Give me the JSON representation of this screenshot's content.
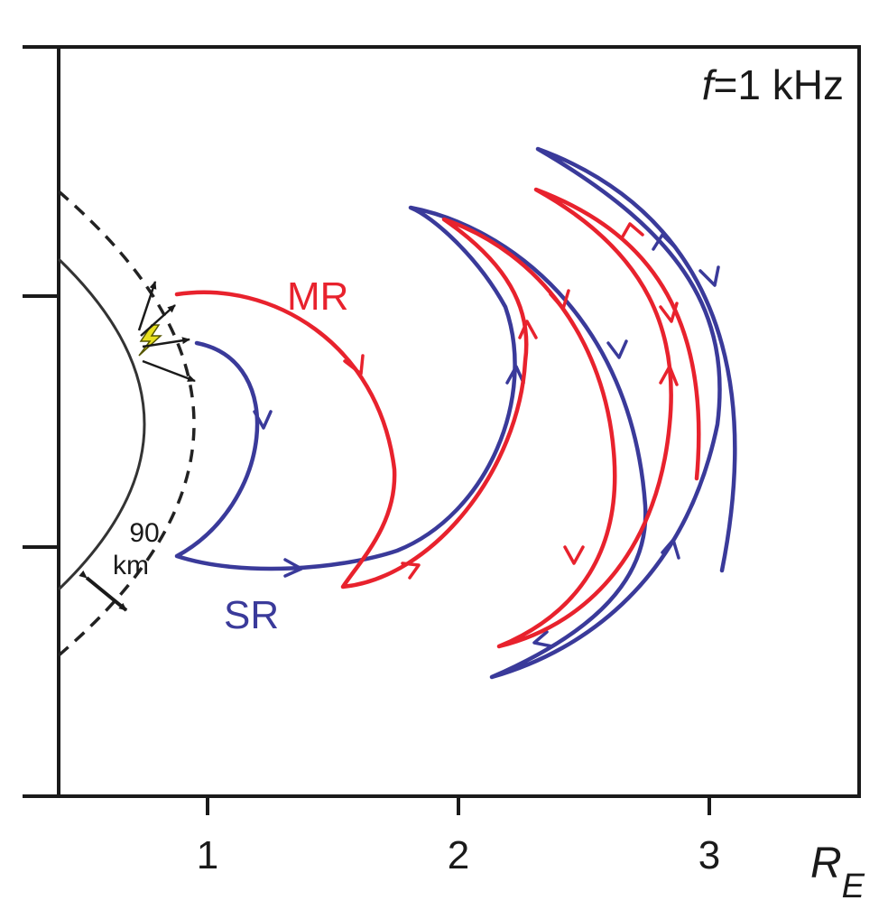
{
  "annotation": {
    "frequency_symbol": "f",
    "frequency_value": "=1 kHz",
    "altitude_value": "90",
    "altitude_unit": "km"
  },
  "labels": {
    "mr": "MR",
    "sr": "SR"
  },
  "x_axis": {
    "unit_symbol": "R",
    "unit_subscript": "E",
    "ticks": [
      "1",
      "2",
      "3"
    ]
  },
  "colors": {
    "mr_ray": "#e8222d",
    "sr_ray": "#3a3a9a",
    "frame": "#1a1a1a",
    "lightning": "#e8e020"
  }
}
